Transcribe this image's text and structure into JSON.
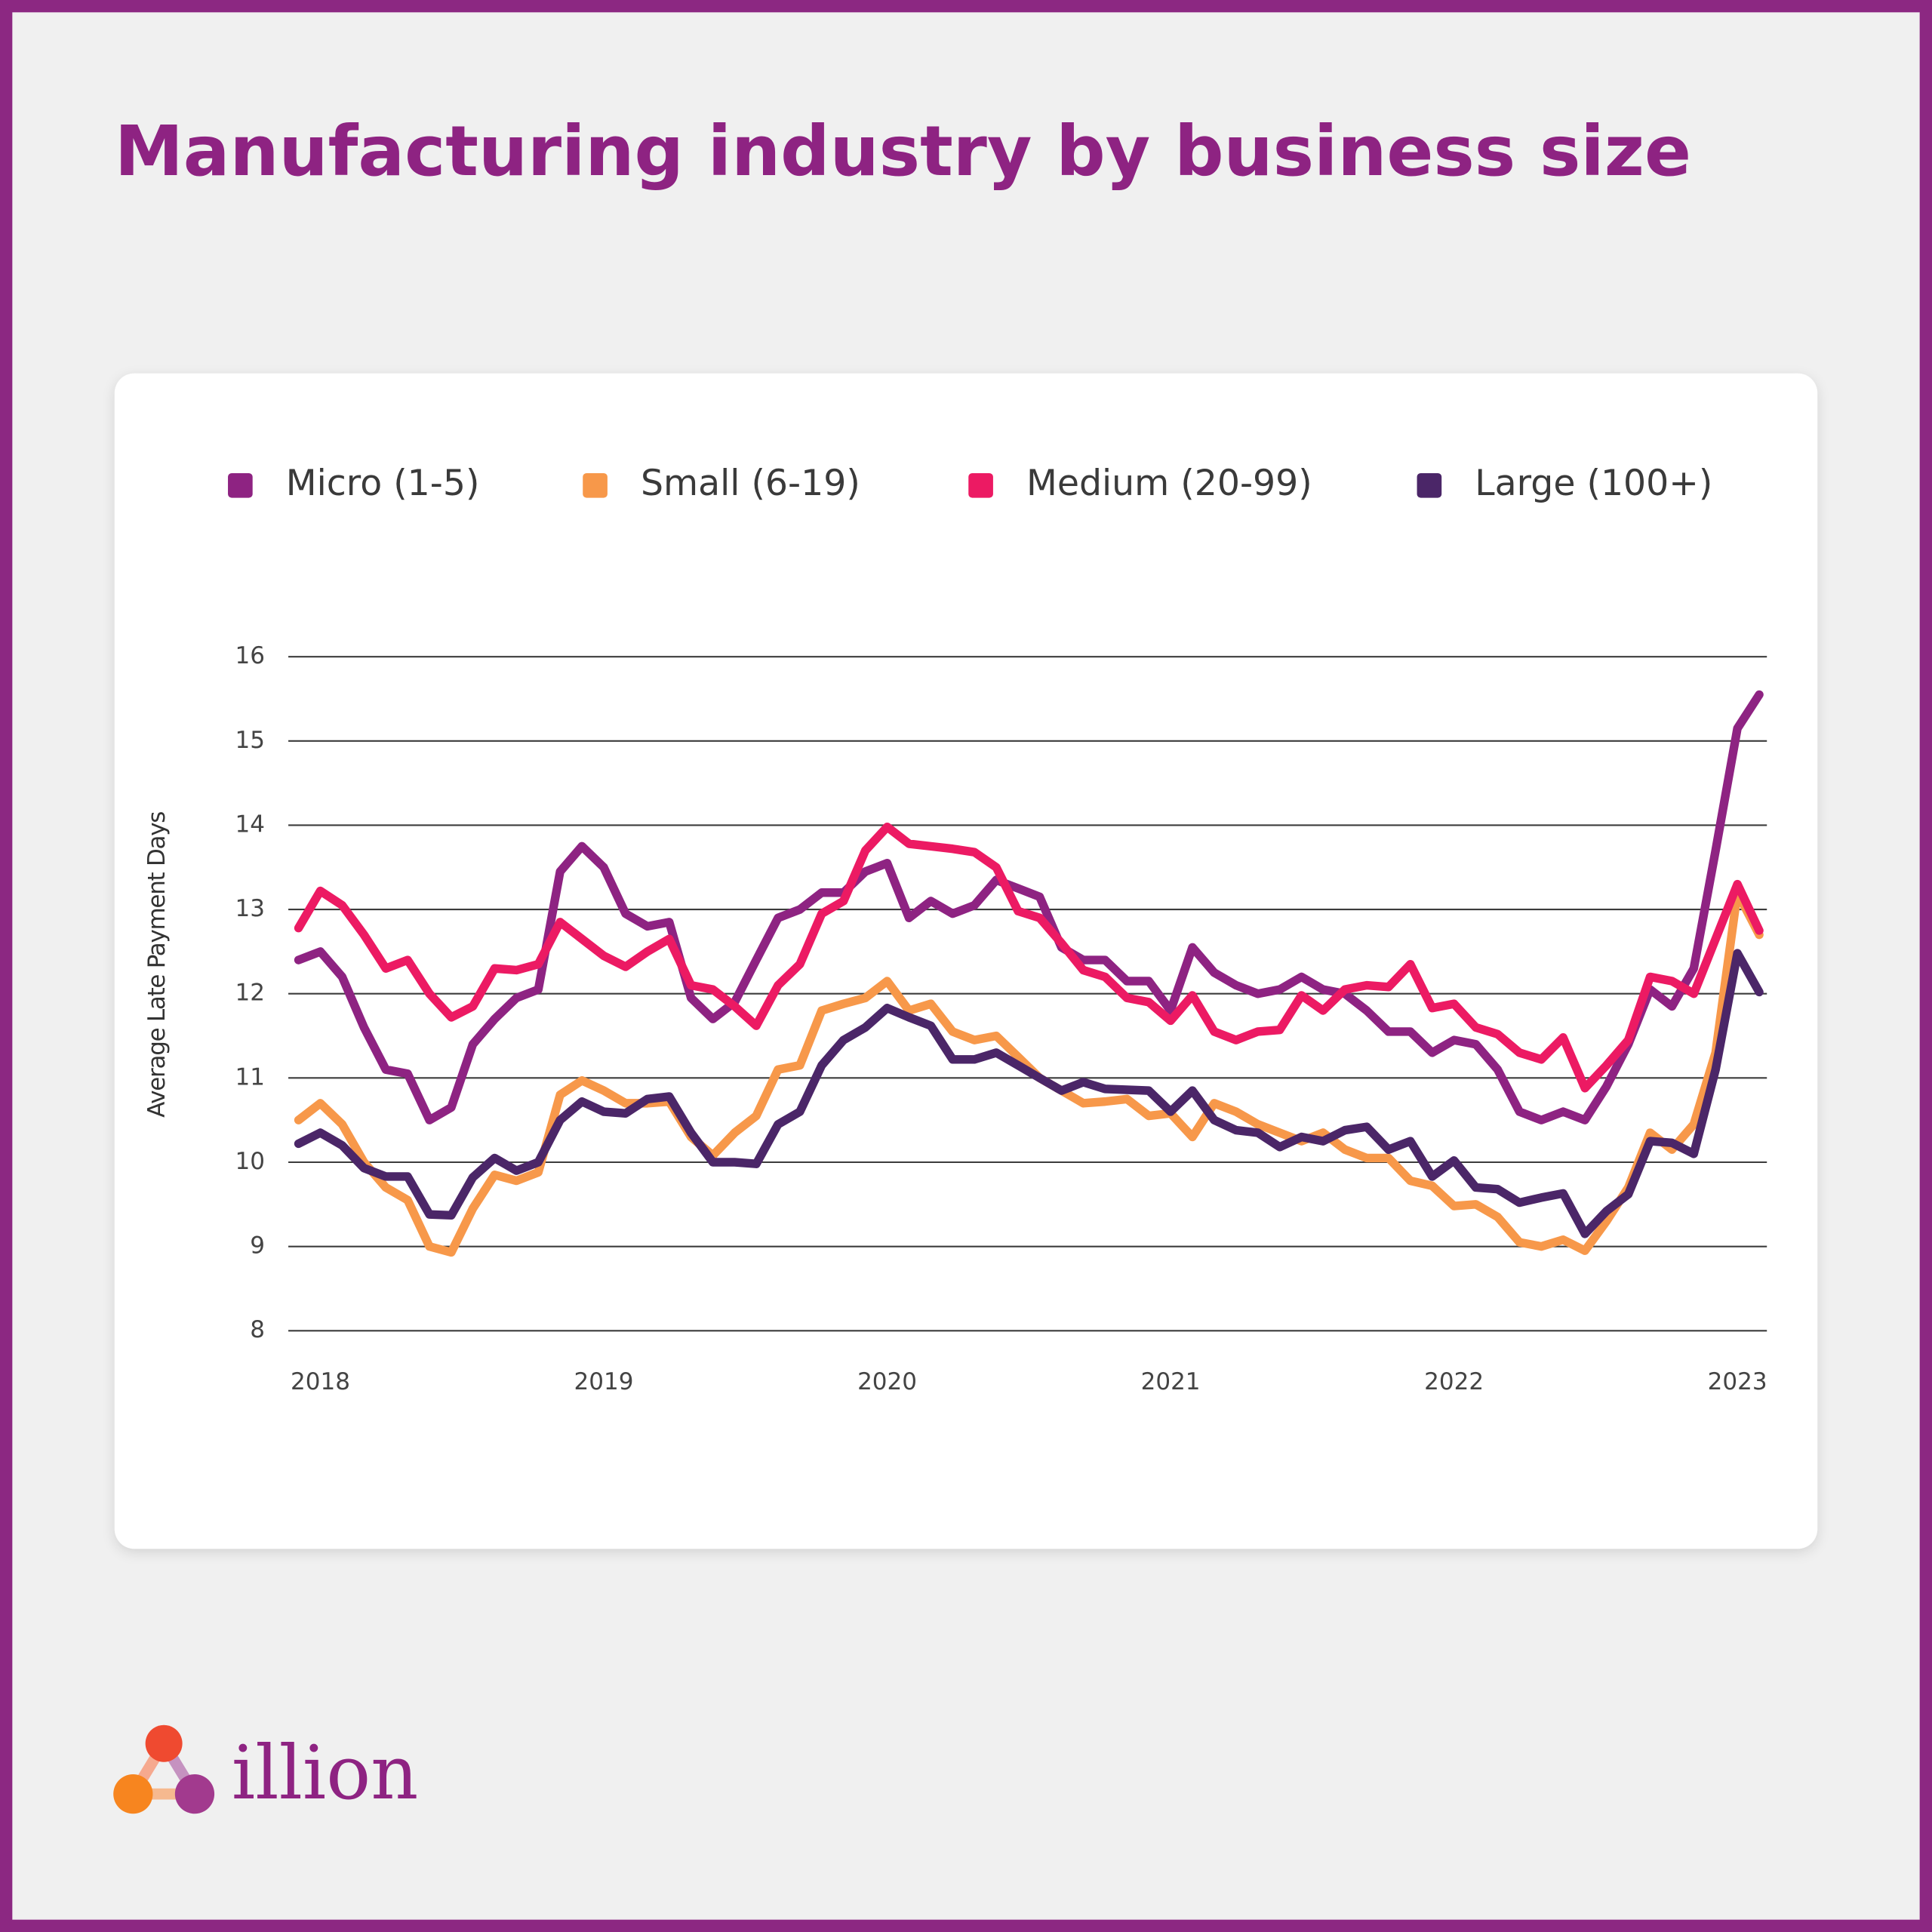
{
  "chart_data": {
    "type": "line",
    "title": "Manufacturing industry by business size",
    "y_label": "Average Late Payment Days",
    "legend": "top",
    "grid": true,
    "xlim": [
      2017.887,
      2023.104
    ],
    "xticks": [
      2018,
      2019,
      2020,
      2021,
      2022,
      2023
    ],
    "ylim": [
      8,
      16
    ],
    "yticks": [
      8,
      9,
      10,
      11,
      12,
      13,
      14,
      15,
      16
    ],
    "x": [
      2017.923,
      2018.0,
      2018.077,
      2018.154,
      2018.231,
      2018.308,
      2018.385,
      2018.462,
      2018.538,
      2018.615,
      2018.692,
      2018.769,
      2018.846,
      2018.923,
      2019.0,
      2019.077,
      2019.154,
      2019.231,
      2019.308,
      2019.385,
      2019.462,
      2019.538,
      2019.615,
      2019.692,
      2019.769,
      2019.846,
      2019.923,
      2020.0,
      2020.077,
      2020.154,
      2020.231,
      2020.308,
      2020.385,
      2020.462,
      2020.538,
      2020.615,
      2020.692,
      2020.769,
      2020.846,
      2020.923,
      2021.0,
      2021.077,
      2021.154,
      2021.231,
      2021.308,
      2021.385,
      2021.462,
      2021.538,
      2021.615,
      2021.692,
      2021.769,
      2021.846,
      2021.923,
      2022.0,
      2022.077,
      2022.154,
      2022.231,
      2022.308,
      2022.385,
      2022.462,
      2022.538,
      2022.615,
      2022.692,
      2022.769,
      2022.846,
      2022.923,
      2023.0,
      2023.077
    ],
    "series": [
      {
        "name": "Micro (1-5)",
        "color": "#8e2382",
        "values": [
          12.4,
          12.5,
          12.2,
          11.6,
          11.1,
          11.05,
          10.5,
          10.65,
          11.4,
          11.7,
          11.95,
          12.05,
          13.45,
          13.75,
          13.5,
          12.95,
          12.8,
          12.85,
          11.95,
          11.7,
          11.9,
          12.4,
          12.9,
          13.0,
          13.2,
          13.2,
          13.45,
          13.55,
          12.9,
          13.1,
          12.95,
          13.05,
          13.35,
          13.25,
          13.15,
          12.55,
          12.4,
          12.4,
          12.15,
          12.15,
          11.8,
          12.55,
          12.25,
          12.1,
          12.0,
          12.05,
          12.2,
          12.05,
          12.0,
          11.8,
          11.55,
          11.55,
          11.3,
          11.45,
          11.4,
          11.1,
          10.6,
          10.5,
          10.6,
          10.5,
          10.9,
          11.4,
          12.05,
          11.85,
          12.3,
          13.7,
          15.15,
          15.55
        ]
      },
      {
        "name": "Small (6-19)",
        "color": "#f7984a",
        "values": [
          10.5,
          10.7,
          10.45,
          10.0,
          9.7,
          9.55,
          9.0,
          8.93,
          9.45,
          9.85,
          9.78,
          9.88,
          10.8,
          10.97,
          10.85,
          10.7,
          10.7,
          10.72,
          10.3,
          10.08,
          10.35,
          10.55,
          11.1,
          11.15,
          11.8,
          11.88,
          11.95,
          12.15,
          11.8,
          11.88,
          11.55,
          11.45,
          11.5,
          11.25,
          11.0,
          10.85,
          10.7,
          10.72,
          10.75,
          10.55,
          10.58,
          10.3,
          10.7,
          10.6,
          10.45,
          10.35,
          10.25,
          10.35,
          10.15,
          10.05,
          10.05,
          9.78,
          9.72,
          9.48,
          9.5,
          9.35,
          9.05,
          9.0,
          9.08,
          8.95,
          9.3,
          9.7,
          10.35,
          10.15,
          10.45,
          11.3,
          13.2,
          12.7
        ]
      },
      {
        "name": "Medium (20-99)",
        "color": "#ec1a63",
        "values": [
          12.78,
          13.22,
          13.05,
          12.7,
          12.3,
          12.4,
          12.0,
          11.72,
          11.85,
          12.3,
          12.28,
          12.35,
          12.85,
          12.65,
          12.45,
          12.32,
          12.5,
          12.65,
          12.1,
          12.05,
          11.85,
          11.62,
          12.1,
          12.35,
          12.95,
          13.1,
          13.7,
          13.98,
          13.78,
          13.75,
          13.72,
          13.68,
          13.5,
          12.98,
          12.9,
          12.6,
          12.28,
          12.2,
          11.95,
          11.9,
          11.68,
          11.98,
          11.55,
          11.45,
          11.55,
          11.57,
          11.98,
          11.8,
          12.05,
          12.1,
          12.08,
          12.35,
          11.83,
          11.88,
          11.6,
          11.52,
          11.3,
          11.22,
          11.48,
          10.88,
          11.15,
          11.45,
          12.2,
          12.15,
          12.0,
          12.65,
          13.3,
          12.75
        ]
      },
      {
        "name": "Large (100+)",
        "color": "#4b2668",
        "values": [
          10.22,
          10.35,
          10.2,
          9.93,
          9.83,
          9.83,
          9.38,
          9.37,
          9.82,
          10.05,
          9.9,
          10.0,
          10.5,
          10.72,
          10.6,
          10.58,
          10.75,
          10.78,
          10.35,
          10.0,
          10.0,
          9.98,
          10.45,
          10.6,
          11.15,
          11.45,
          11.6,
          11.83,
          11.72,
          11.62,
          11.22,
          11.22,
          11.3,
          11.15,
          11.0,
          10.85,
          10.95,
          10.87,
          10.86,
          10.85,
          10.6,
          10.85,
          10.5,
          10.38,
          10.35,
          10.18,
          10.3,
          10.25,
          10.38,
          10.42,
          10.15,
          10.25,
          9.83,
          10.02,
          9.7,
          9.68,
          9.52,
          9.58,
          9.63,
          9.15,
          9.42,
          9.62,
          10.25,
          10.23,
          10.1,
          11.1,
          12.48,
          12.02
        ]
      }
    ]
  },
  "brand": "illion"
}
